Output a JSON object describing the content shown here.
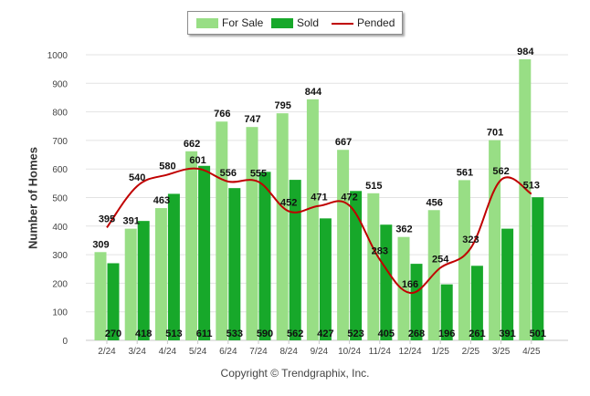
{
  "chart_data": {
    "type": "bar",
    "title": "",
    "ylabel": "Number of Homes",
    "xlabel": "",
    "ylim": [
      0,
      1000
    ],
    "yticks": [
      "0",
      "100",
      "200",
      "300",
      "400",
      "500",
      "600",
      "700",
      "800",
      "900",
      "1000"
    ],
    "grid": true,
    "legend_position": "top-center",
    "categories": [
      "2/24",
      "3/24",
      "4/24",
      "5/24",
      "6/24",
      "7/24",
      "8/24",
      "9/24",
      "10/24",
      "11/24",
      "12/24",
      "1/25",
      "2/25",
      "3/25",
      "4/25"
    ],
    "series": [
      {
        "name": "For Sale",
        "type": "bar",
        "color": "#98de85",
        "values": [
          309,
          391,
          463,
          662,
          766,
          747,
          795,
          844,
          667,
          515,
          362,
          456,
          561,
          701,
          984
        ]
      },
      {
        "name": "Sold",
        "type": "bar",
        "color": "#17a82a",
        "values": [
          270,
          418,
          513,
          611,
          533,
          590,
          562,
          427,
          523,
          405,
          268,
          196,
          261,
          391,
          501
        ]
      },
      {
        "name": "Pended",
        "type": "line",
        "color": "#c00000",
        "values": [
          395,
          540,
          580,
          601,
          556,
          555,
          452,
          471,
          472,
          283,
          166,
          254,
          323,
          562,
          513
        ]
      }
    ]
  },
  "legend": [
    {
      "label": "For Sale",
      "color": "#98de85"
    },
    {
      "label": "Sold",
      "color": "#17a82a"
    },
    {
      "label": "Pended",
      "color": "#c00000"
    }
  ],
  "footer": {
    "copyright": "Copyright © Trendgraphix, Inc."
  }
}
